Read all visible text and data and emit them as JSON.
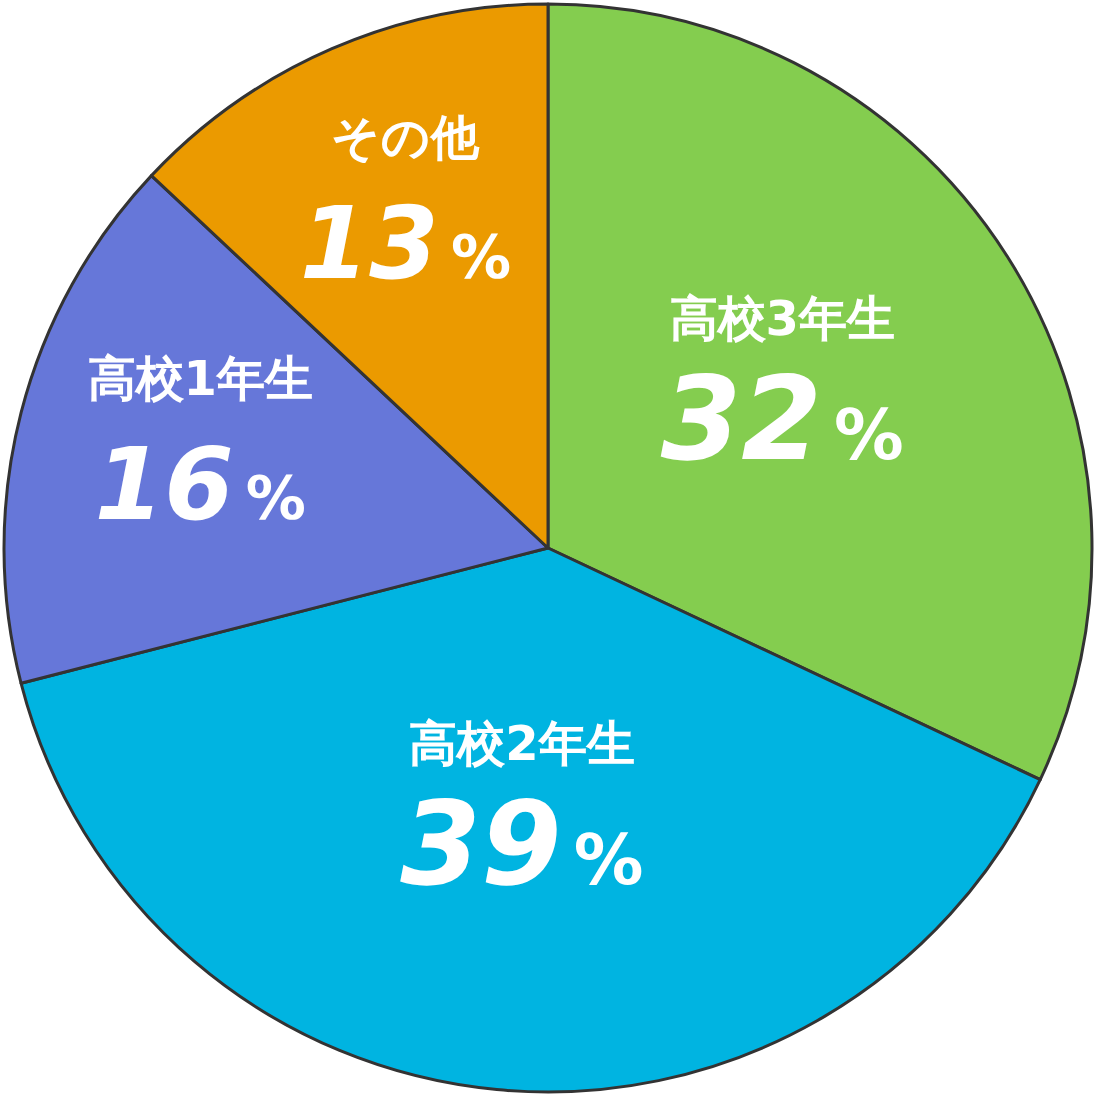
{
  "chart_data": {
    "type": "pie",
    "categories": [
      "高校3年生",
      "高校2年生",
      "高校1年生",
      "その他"
    ],
    "values": [
      32,
      39,
      16,
      13
    ],
    "colors": [
      "#84cd4f",
      "#00b4e1",
      "#6677d9",
      "#eb9a00"
    ],
    "value_labels": [
      "32%",
      "39%",
      "16%",
      "13%"
    ]
  }
}
